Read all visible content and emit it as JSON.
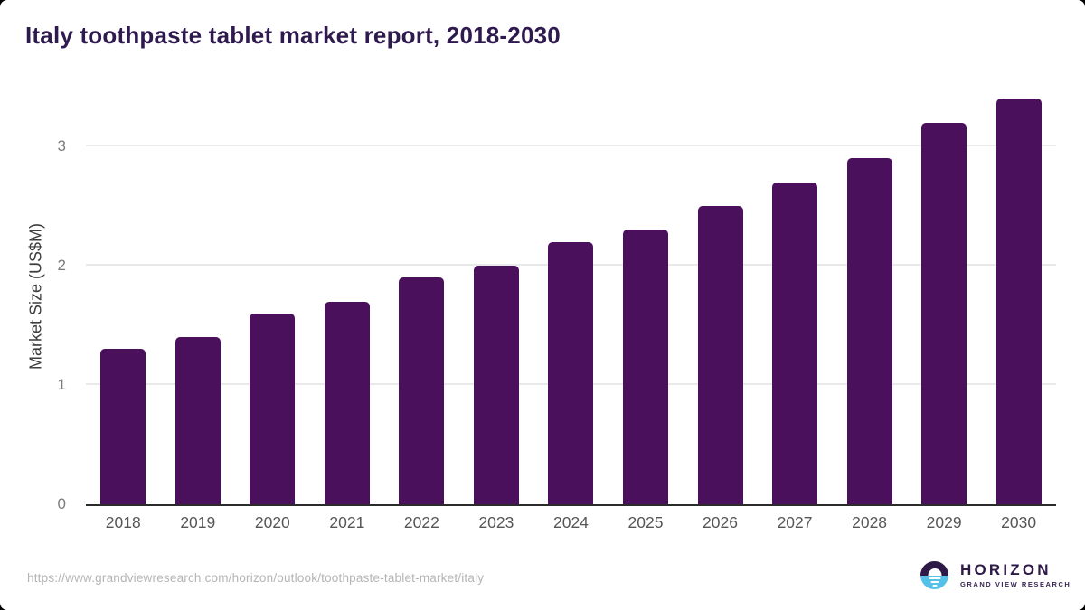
{
  "title": "Italy toothpaste tablet market report, 2018-2030",
  "footer": {
    "source_url": "https://www.grandviewresearch.com/horizon/outlook/toothpaste-tablet-market/italy",
    "logo": {
      "name": "HORIZON",
      "subtitle": "GRAND VIEW RESEARCH"
    }
  },
  "colors": {
    "bar": "#4a105c",
    "title": "#2f1a4f",
    "axis_line": "#2b2b2b",
    "gridline": "#e9e9e9",
    "logo_purple": "#2e1a47",
    "logo_blue": "#56c1e8"
  },
  "chart_data": {
    "type": "bar",
    "title": "Italy toothpaste tablet market report, 2018-2030",
    "categories": [
      "2018",
      "2019",
      "2020",
      "2021",
      "2022",
      "2023",
      "2024",
      "2025",
      "2026",
      "2027",
      "2028",
      "2029",
      "2030"
    ],
    "values": [
      1.3,
      1.4,
      1.6,
      1.7,
      1.9,
      2.0,
      2.2,
      2.3,
      2.5,
      2.7,
      2.9,
      3.2,
      3.4
    ],
    "xlabel": "",
    "ylabel": "Market Size (US$M)",
    "ylim": [
      0,
      3.47
    ],
    "yticks": [
      0,
      1,
      2,
      3
    ],
    "grid": true,
    "legend": false
  }
}
